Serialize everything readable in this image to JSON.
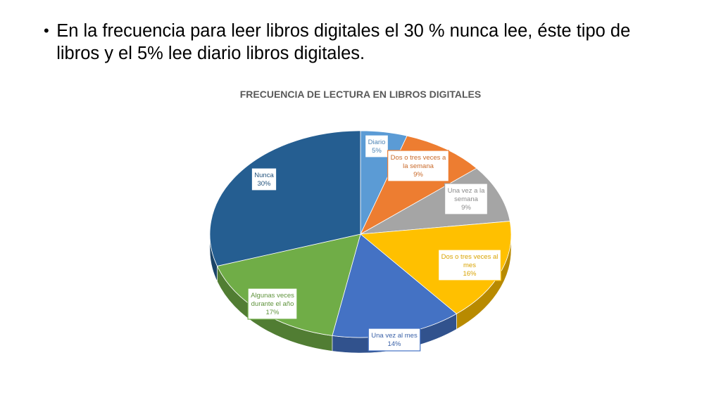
{
  "slide": {
    "bullet_text": "En la frecuencia para leer libros  digitales el 30 % nunca lee, éste tipo de libros y el 5% lee diario libros digitales."
  },
  "chart_data": {
    "type": "pie",
    "title": "FRECUENCIA DE LECTURA EN LIBROS DIGITALES",
    "categories": [
      "Diario",
      "Dos o tres veces a la semana",
      "Una vez a la semana",
      "Dos o tres veces al mes",
      "Una vez al mes",
      "Algunas veces durante el año",
      "Nunca"
    ],
    "values": [
      5,
      9,
      9,
      16,
      14,
      17,
      30
    ],
    "value_labels": [
      "5%",
      "9%",
      "9%",
      "16%",
      "14%",
      "17%",
      "30%"
    ],
    "colors": [
      "#5B9BD5",
      "#ED7D31",
      "#A5A5A5",
      "#FFC000",
      "#4472C4",
      "#70AD47",
      "#255E91"
    ],
    "label_lines": [
      [
        "Diario",
        "5%"
      ],
      [
        "Dos o tres veces a",
        "la semana",
        "9%"
      ],
      [
        "Una vez a la",
        "semana",
        "9%"
      ],
      [
        "Dos o tres veces al",
        "mes",
        "16%"
      ],
      [
        "Una vez al mes",
        "14%"
      ],
      [
        "Algunas veces",
        "durante el año",
        "17%"
      ],
      [
        "Nunca",
        "30%"
      ]
    ],
    "style": "3D pie with data callout labels"
  }
}
